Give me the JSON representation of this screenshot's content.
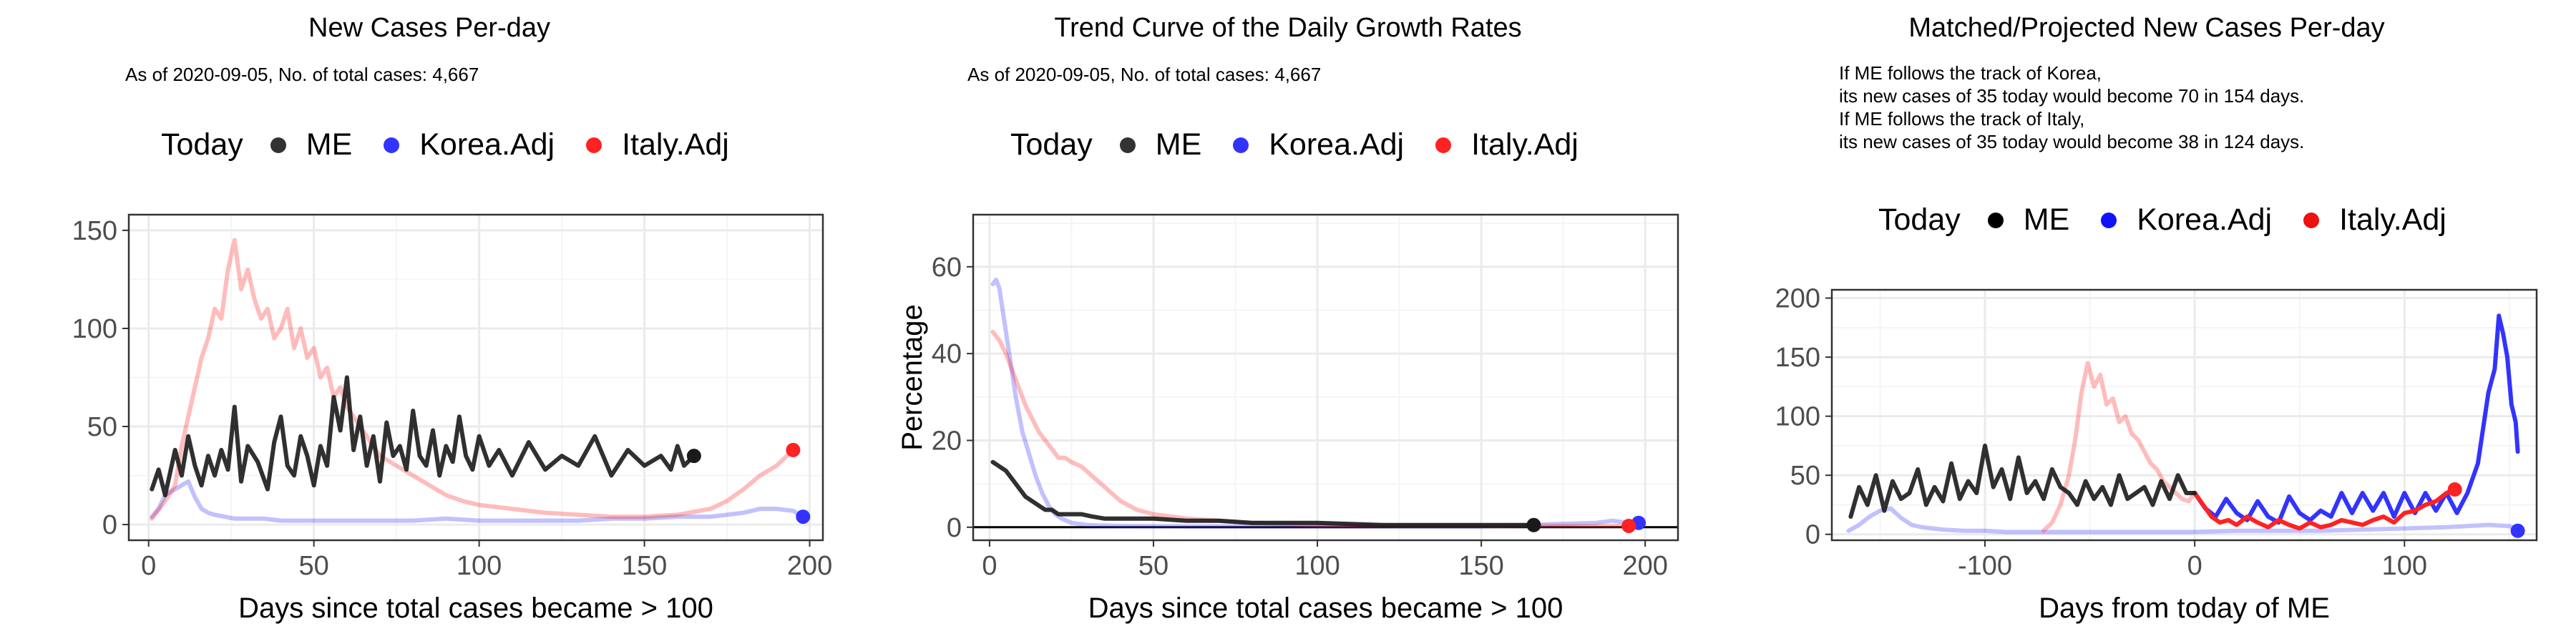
{
  "colors": {
    "me": "#1a1a1a",
    "korea": "#3333ff",
    "italy": "#ff2222",
    "grid_major": "#ebebeb",
    "grid_minor": "#f5f5f5",
    "panel_border": "#333333"
  },
  "legend": {
    "title": "Today",
    "items": [
      {
        "label": "ME",
        "color": "#333333"
      },
      {
        "label": "Korea.Adj",
        "color": "#3333ff"
      },
      {
        "label": "Italy.Adj",
        "color": "#ff2222"
      }
    ]
  },
  "legend3": {
    "title": "Today",
    "items": [
      {
        "label": "ME",
        "color": "#000000"
      },
      {
        "label": "Korea.Adj",
        "color": "#1111ff"
      },
      {
        "label": "Italy.Adj",
        "color": "#ee1111"
      }
    ]
  },
  "panels": [
    {
      "title": "New Cases Per-day",
      "subtitle": "As of 2020-09-05, No. of total cases: 4,667"
    },
    {
      "title": "Trend Curve of the Daily Growth Rates",
      "subtitle": "As of 2020-09-05, No. of total cases: 4,667"
    },
    {
      "title": "Matched/Projected New Cases Per-day",
      "subtitle": "If ME follows the track of Korea,\nits new cases of 35 today would become 70 in 154 days.\nIf ME follows the track of Italy,\nits new cases of 35 today would become 38 in 124 days."
    }
  ],
  "chart_data": [
    {
      "type": "line",
      "title": "New Cases Per-day",
      "subtitle": "As of 2020-09-05, No. of total cases: 4,667",
      "xlabel": "Days since total cases became > 100",
      "ylabel": "",
      "xlim": [
        -6,
        204
      ],
      "ylim": [
        -8,
        158
      ],
      "xticks": [
        0,
        50,
        100,
        150,
        200
      ],
      "yticks": [
        0,
        50,
        100,
        150
      ],
      "grid": true,
      "legend_position": "top",
      "series": [
        {
          "name": "ME",
          "style": "solid",
          "x": [
            1,
            3,
            5,
            8,
            10,
            12,
            14,
            16,
            18,
            20,
            22,
            24,
            26,
            28,
            30,
            33,
            36,
            38,
            40,
            42,
            44,
            46,
            48,
            50,
            52,
            54,
            56,
            58,
            60,
            62,
            64,
            66,
            68,
            70,
            72,
            74,
            76,
            78,
            80,
            82,
            84,
            86,
            88,
            90,
            92,
            94,
            96,
            98,
            100,
            103,
            106,
            110,
            115,
            120,
            125,
            130,
            135,
            140,
            145,
            150,
            155,
            158,
            160,
            162,
            165
          ],
          "y": [
            18,
            28,
            15,
            38,
            25,
            45,
            30,
            20,
            35,
            25,
            38,
            28,
            60,
            22,
            40,
            32,
            18,
            42,
            55,
            30,
            25,
            45,
            35,
            20,
            40,
            30,
            65,
            48,
            75,
            38,
            55,
            30,
            45,
            22,
            52,
            35,
            40,
            28,
            58,
            35,
            30,
            48,
            25,
            40,
            32,
            55,
            35,
            28,
            45,
            30,
            38,
            25,
            42,
            28,
            35,
            30,
            45,
            25,
            38,
            30,
            35,
            28,
            40,
            30,
            35
          ]
        },
        {
          "name": "Korea.Adj",
          "style": "faded",
          "x": [
            1,
            3,
            5,
            8,
            10,
            12,
            14,
            16,
            18,
            20,
            23,
            26,
            30,
            35,
            40,
            50,
            60,
            70,
            80,
            90,
            100,
            110,
            120,
            130,
            140,
            150,
            160,
            170,
            180,
            185,
            190,
            195,
            198
          ],
          "y": [
            4,
            8,
            15,
            18,
            20,
            22,
            14,
            8,
            6,
            5,
            4,
            3,
            3,
            3,
            2,
            2,
            2,
            2,
            2,
            3,
            2,
            2,
            2,
            2,
            3,
            3,
            4,
            4,
            6,
            8,
            8,
            7,
            4
          ]
        },
        {
          "name": "Italy.Adj",
          "style": "faded",
          "x": [
            1,
            5,
            8,
            10,
            12,
            14,
            16,
            18,
            20,
            22,
            24,
            26,
            28,
            30,
            32,
            34,
            36,
            38,
            40,
            42,
            44,
            46,
            48,
            50,
            52,
            54,
            56,
            58,
            60,
            62,
            64,
            66,
            68,
            70,
            75,
            80,
            85,
            90,
            95,
            100,
            110,
            120,
            130,
            140,
            150,
            160,
            170,
            175,
            180,
            185,
            190,
            195
          ],
          "y": [
            3,
            12,
            20,
            40,
            55,
            70,
            85,
            95,
            110,
            105,
            130,
            145,
            120,
            130,
            115,
            105,
            110,
            95,
            100,
            110,
            90,
            100,
            85,
            90,
            75,
            80,
            65,
            70,
            60,
            55,
            50,
            45,
            40,
            35,
            30,
            25,
            20,
            15,
            12,
            10,
            8,
            6,
            5,
            4,
            4,
            5,
            8,
            12,
            18,
            25,
            30,
            38
          ]
        }
      ],
      "today_points": [
        {
          "name": "ME",
          "x": 165,
          "y": 35
        },
        {
          "name": "Korea.Adj",
          "x": 198,
          "y": 4
        },
        {
          "name": "Italy.Adj",
          "x": 195,
          "y": 38
        }
      ]
    },
    {
      "type": "line",
      "title": "Trend Curve of the Daily Growth Rates",
      "subtitle": "As of 2020-09-05, No. of total cases: 4,667",
      "xlabel": "Days since total cases became > 100",
      "ylabel": "Percentage",
      "xlim": [
        -5,
        210
      ],
      "ylim": [
        -3,
        72
      ],
      "xticks": [
        0,
        50,
        100,
        150,
        200
      ],
      "yticks": [
        0,
        20,
        40,
        60
      ],
      "grid": true,
      "hline_y": 0,
      "legend_position": "top",
      "series": [
        {
          "name": "ME",
          "style": "solid",
          "x": [
            1,
            3,
            5,
            7,
            9,
            11,
            13,
            15,
            17,
            19,
            21,
            23,
            25,
            28,
            31,
            35,
            40,
            50,
            60,
            70,
            80,
            100,
            120,
            140,
            160,
            166
          ],
          "y": [
            15,
            14,
            13,
            11,
            9,
            7,
            6,
            5,
            4,
            4,
            3,
            3,
            3,
            3,
            2.5,
            2,
            2,
            2,
            1.5,
            1.5,
            1,
            1,
            0.5,
            0.5,
            0.5,
            0.5
          ]
        },
        {
          "name": "Korea.Adj",
          "style": "faded",
          "x": [
            1,
            2,
            3,
            4,
            5,
            6,
            7,
            8,
            9,
            10,
            12,
            14,
            16,
            18,
            20,
            22,
            25,
            30,
            40,
            60,
            100,
            150,
            185,
            190,
            195,
            198
          ],
          "y": [
            56,
            57,
            55,
            50,
            45,
            40,
            35,
            30,
            26,
            22,
            17,
            12,
            8,
            5,
            3,
            2,
            1,
            0.5,
            0.3,
            0.2,
            0.2,
            0.2,
            1,
            1.5,
            1,
            1
          ]
        },
        {
          "name": "Italy.Adj",
          "style": "faded",
          "x": [
            1,
            3,
            5,
            7,
            9,
            11,
            13,
            15,
            17,
            19,
            21,
            23,
            25,
            28,
            31,
            34,
            37,
            40,
            45,
            50,
            55,
            60,
            70,
            80,
            100,
            130,
            160,
            195
          ],
          "y": [
            45,
            43,
            40,
            36,
            32,
            28,
            25,
            22,
            20,
            18,
            16,
            16,
            15,
            14,
            12,
            10,
            8,
            6,
            4,
            3,
            2.5,
            2,
            1.5,
            1,
            0.5,
            0.3,
            0.3,
            0.3
          ]
        }
      ],
      "today_points": [
        {
          "name": "ME",
          "x": 166,
          "y": 0.5
        },
        {
          "name": "Korea.Adj",
          "x": 198,
          "y": 1
        },
        {
          "name": "Italy.Adj",
          "x": 195,
          "y": 0.3
        }
      ]
    },
    {
      "type": "line",
      "title": "Matched/Projected New Cases Per-day",
      "subtitle": "If ME follows the track of Korea,\nits new cases of 35 today would become 70 in 154 days.\nIf ME follows the track of Italy,\nits new cases of 35 today would become 38 in 124 days.",
      "xlabel": "Days from today of ME",
      "ylabel": "",
      "xlim": [
        -173,
        163
      ],
      "ylim": [
        -5,
        207
      ],
      "xticks": [
        -100,
        0,
        100
      ],
      "yticks": [
        0,
        50,
        100,
        150,
        200
      ],
      "grid": true,
      "legend_position": "top",
      "series": [
        {
          "name": "ME",
          "style": "solid",
          "x": [
            -164,
            -160,
            -156,
            -152,
            -148,
            -144,
            -140,
            -136,
            -132,
            -128,
            -124,
            -120,
            -116,
            -112,
            -108,
            -104,
            -100,
            -96,
            -92,
            -88,
            -84,
            -80,
            -76,
            -72,
            -68,
            -64,
            -60,
            -56,
            -52,
            -48,
            -44,
            -40,
            -36,
            -32,
            -28,
            -24,
            -20,
            -16,
            -12,
            -8,
            -4,
            0
          ],
          "y": [
            15,
            40,
            25,
            50,
            20,
            45,
            30,
            35,
            55,
            25,
            40,
            28,
            60,
            30,
            45,
            35,
            75,
            40,
            55,
            30,
            65,
            35,
            45,
            30,
            55,
            40,
            35,
            25,
            45,
            30,
            40,
            25,
            50,
            30,
            35,
            40,
            25,
            45,
            30,
            50,
            35,
            35
          ]
        },
        {
          "name": "Korea.Adj",
          "style": "faded",
          "x": [
            -165,
            -160,
            -155,
            -150,
            -145,
            -140,
            -135,
            -130,
            -125,
            -120,
            -110,
            -100,
            -90,
            -80,
            -60,
            -40,
            -20,
            0,
            20,
            40,
            60,
            80,
            100,
            120,
            140,
            150,
            154
          ],
          "y": [
            3,
            8,
            15,
            20,
            22,
            14,
            8,
            6,
            5,
            4,
            3,
            3,
            2,
            2,
            2,
            2,
            2,
            2,
            3,
            3,
            3,
            4,
            5,
            6,
            8,
            7,
            4
          ]
        },
        {
          "name": "Italy.Adj",
          "style": "faded",
          "x": [
            -72,
            -68,
            -64,
            -60,
            -57,
            -54,
            -51,
            -48,
            -45,
            -42,
            -39,
            -36,
            -33,
            -30,
            -27,
            -24,
            -21,
            -18,
            -15,
            -12,
            -9,
            -6,
            -3,
            0
          ],
          "y": [
            3,
            10,
            25,
            50,
            80,
            120,
            145,
            125,
            135,
            110,
            115,
            95,
            100,
            85,
            80,
            70,
            60,
            55,
            45,
            40,
            35,
            30,
            28,
            35
          ]
        },
        {
          "name": "Korea.Adj",
          "style": "projected",
          "x": [
            0,
            5,
            10,
            15,
            20,
            25,
            30,
            35,
            40,
            45,
            50,
            55,
            60,
            65,
            70,
            75,
            80,
            85,
            90,
            95,
            100,
            105,
            110,
            115,
            120,
            125,
            130,
            135,
            140,
            143,
            145,
            147,
            149,
            151,
            153,
            154
          ],
          "y": [
            35,
            22,
            15,
            30,
            18,
            12,
            28,
            15,
            10,
            32,
            18,
            12,
            20,
            15,
            35,
            18,
            35,
            20,
            35,
            15,
            35,
            18,
            35,
            20,
            35,
            18,
            35,
            60,
            120,
            140,
            185,
            170,
            150,
            110,
            95,
            70
          ]
        },
        {
          "name": "Italy.Adj",
          "style": "projected",
          "x": [
            0,
            4,
            8,
            12,
            16,
            20,
            25,
            30,
            35,
            40,
            45,
            50,
            55,
            60,
            65,
            70,
            75,
            80,
            85,
            90,
            95,
            100,
            105,
            110,
            115,
            120,
            124
          ],
          "y": [
            35,
            25,
            15,
            10,
            12,
            8,
            15,
            10,
            6,
            12,
            8,
            5,
            10,
            6,
            8,
            12,
            10,
            8,
            12,
            15,
            10,
            18,
            20,
            25,
            28,
            35,
            38
          ]
        }
      ],
      "today_points": [
        {
          "name": "Korea.Adj",
          "x": 154,
          "y": 3
        },
        {
          "name": "Italy.Adj",
          "x": 124,
          "y": 38
        }
      ]
    }
  ]
}
